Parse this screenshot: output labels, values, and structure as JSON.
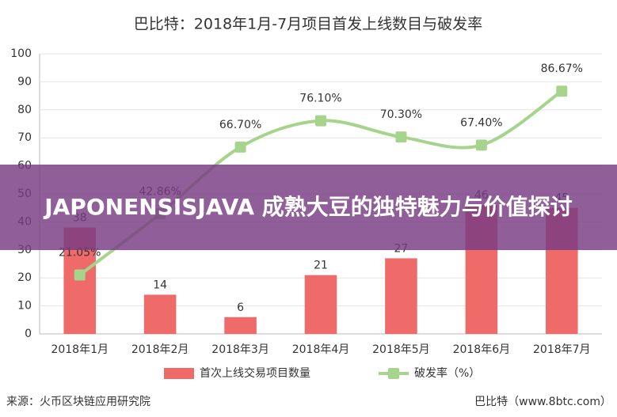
{
  "chart_data": {
    "type": "combo",
    "title": "巴比特：2018年1月-7月项目首发上线数目与破发率",
    "categories": [
      "2018年1月",
      "2018年2月",
      "2018年3月",
      "2018年4月",
      "2018年5月",
      "2018年6月",
      "2018年7月"
    ],
    "series": [
      {
        "name": "首次上线交易项目数量",
        "type": "bar",
        "color": "#ee6b6a",
        "values": [
          38,
          14,
          6,
          21,
          27,
          46,
          45
        ]
      },
      {
        "name": "破发率（%）",
        "type": "line",
        "color": "#a6d48c",
        "values": [
          21.05,
          42.86,
          66.7,
          76.1,
          70.3,
          67.4,
          86.67
        ],
        "value_labels": [
          "21.05%",
          "42.86%",
          "66.70%",
          "76.10%",
          "70.30%",
          "67.40%",
          "86.67%"
        ]
      }
    ],
    "ylim": [
      0,
      100
    ],
    "yticks": [
      0,
      10,
      20,
      30,
      40,
      50,
      60,
      70,
      80,
      90,
      100
    ],
    "grid": true
  },
  "overlay": {
    "title": "JAPONENSISJAVA 成熟大豆的独特魅力与价值探讨"
  },
  "footer": {
    "source": "来源：火币区块链应用研究院",
    "credit": "巴比特（www.8btc.com）"
  }
}
